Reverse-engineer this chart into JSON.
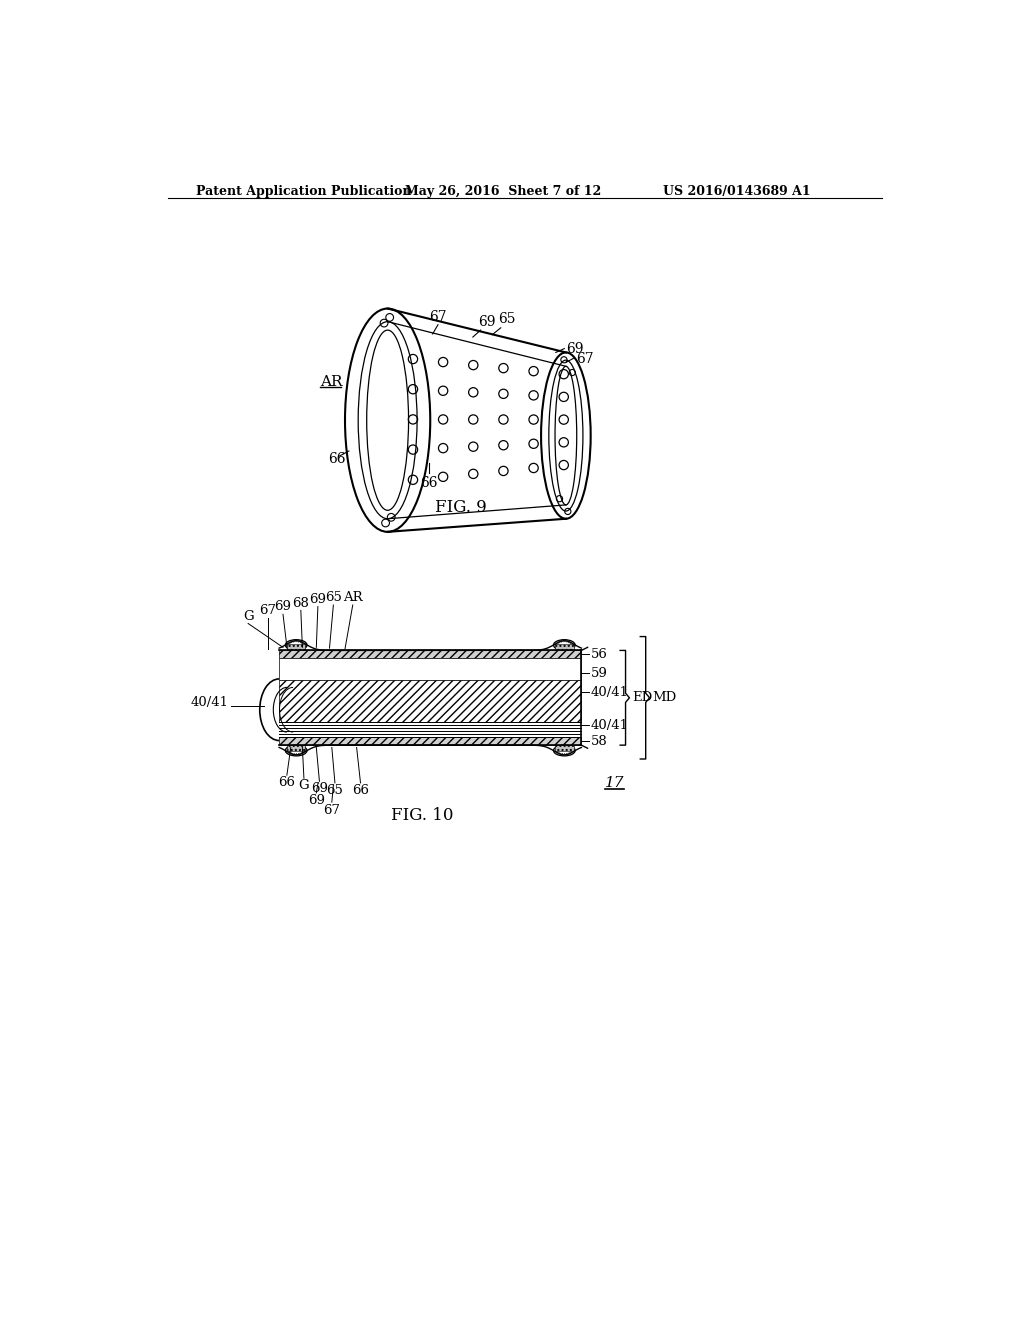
{
  "bg_color": "#ffffff",
  "line_color": "#000000",
  "header_left": "Patent Application Publication",
  "header_center": "May 26, 2016  Sheet 7 of 12",
  "header_right": "US 2016/0143689 A1",
  "fig9_label": "FIG. 9",
  "fig10_label": "FIG. 10"
}
